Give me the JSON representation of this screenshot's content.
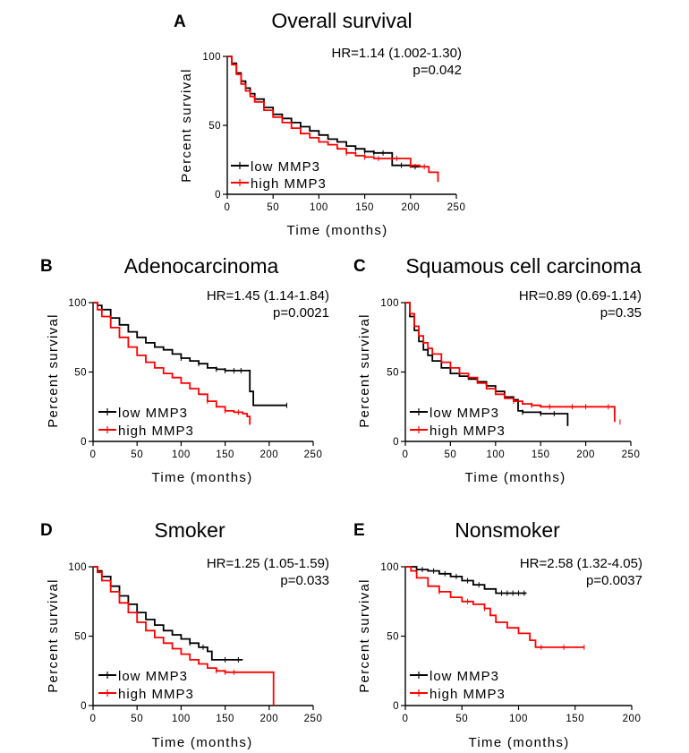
{
  "colors": {
    "low": "#000000",
    "high": "#ff0000"
  },
  "chart_data": [
    {
      "type": "line",
      "panel": "A",
      "title": "Overall survival",
      "hr_text": "HR=1.14 (1.002-1.30)",
      "p_text": "p=0.042",
      "xlabel": "Time (months)",
      "ylabel": "Percent survival",
      "xlim": [
        0,
        250
      ],
      "ylim": [
        0,
        100
      ],
      "xticks": [
        "0",
        "50",
        "100",
        "150",
        "200",
        "250"
      ],
      "yticks": [
        "0",
        "50",
        "100"
      ],
      "legend_position": "bottom-left",
      "series": [
        {
          "name": "low MMP3",
          "color": "#000000",
          "x": [
            0,
            5,
            10,
            15,
            20,
            25,
            30,
            40,
            50,
            60,
            70,
            80,
            90,
            100,
            110,
            120,
            130,
            140,
            150,
            160,
            170,
            180,
            190,
            200,
            210
          ],
          "y": [
            100,
            95,
            88,
            82,
            77,
            73,
            69,
            63,
            58,
            55,
            52,
            49,
            46,
            43,
            40,
            38,
            35,
            33,
            31,
            30,
            30,
            21,
            21,
            20,
            20
          ],
          "censor_x": [
            140,
            150,
            160,
            170,
            190,
            205
          ]
        },
        {
          "name": "high MMP3",
          "color": "#ff0000",
          "x": [
            0,
            5,
            10,
            15,
            20,
            25,
            30,
            40,
            50,
            60,
            70,
            80,
            90,
            100,
            110,
            120,
            130,
            140,
            150,
            160,
            180,
            200,
            210,
            220,
            225,
            230
          ],
          "y": [
            100,
            94,
            87,
            80,
            75,
            71,
            67,
            61,
            56,
            52,
            48,
            44,
            41,
            38,
            36,
            33,
            30,
            28,
            27,
            26,
            26,
            21,
            20,
            16,
            16,
            9
          ],
          "censor_x": [
            130,
            150,
            165,
            185,
            200,
            215
          ]
        }
      ]
    },
    {
      "type": "line",
      "panel": "B",
      "title": "Adenocarcinoma",
      "hr_text": "HR=1.45 (1.14-1.84)",
      "p_text": "p=0.0021",
      "xlabel": "Time (months)",
      "ylabel": "Percent survival",
      "xlim": [
        0,
        250
      ],
      "ylim": [
        0,
        100
      ],
      "xticks": [
        "0",
        "50",
        "100",
        "150",
        "200",
        "250"
      ],
      "yticks": [
        "0",
        "50",
        "100"
      ],
      "legend_position": "bottom-left",
      "series": [
        {
          "name": "low MMP3",
          "color": "#000000",
          "x": [
            0,
            5,
            10,
            20,
            30,
            40,
            50,
            60,
            70,
            80,
            90,
            100,
            110,
            120,
            130,
            140,
            150,
            160,
            170,
            175,
            178,
            182,
            200,
            220
          ],
          "y": [
            100,
            98,
            95,
            89,
            84,
            79,
            75,
            71,
            68,
            66,
            63,
            60,
            58,
            56,
            53,
            52,
            51,
            51,
            51,
            51,
            36,
            26,
            26,
            26
          ],
          "censor_x": [
            100,
            120,
            140,
            150,
            160,
            168,
            220
          ]
        },
        {
          "name": "high MMP3",
          "color": "#ff0000",
          "x": [
            0,
            5,
            10,
            20,
            30,
            40,
            50,
            60,
            70,
            80,
            90,
            100,
            110,
            120,
            130,
            140,
            150,
            160,
            170,
            175,
            178
          ],
          "y": [
            100,
            95,
            90,
            82,
            75,
            68,
            62,
            57,
            53,
            49,
            46,
            42,
            38,
            34,
            29,
            25,
            22,
            21,
            20,
            18,
            12
          ],
          "censor_x": [
            130,
            150,
            165
          ]
        }
      ]
    },
    {
      "type": "line",
      "panel": "C",
      "title": "Squamous cell carcinoma",
      "hr_text": "HR=0.89 (0.69-1.14)",
      "p_text": "p=0.35",
      "xlabel": "Time (months)",
      "ylabel": "Percent survival",
      "xlim": [
        0,
        250
      ],
      "ylim": [
        0,
        100
      ],
      "xticks": [
        "0",
        "50",
        "100",
        "150",
        "200",
        "250"
      ],
      "yticks": [
        "0",
        "50",
        "100"
      ],
      "legend_position": "bottom-left",
      "series": [
        {
          "name": "low MMP3",
          "color": "#000000",
          "x": [
            0,
            5,
            10,
            15,
            20,
            25,
            30,
            40,
            50,
            60,
            70,
            80,
            90,
            100,
            110,
            120,
            125,
            130,
            150,
            170,
            178,
            180
          ],
          "y": [
            100,
            90,
            80,
            72,
            66,
            62,
            58,
            53,
            49,
            47,
            45,
            43,
            40,
            36,
            32,
            30,
            22,
            21,
            20,
            20,
            20,
            11
          ],
          "censor_x": [
            130,
            150,
            165
          ]
        },
        {
          "name": "high MMP3",
          "color": "#ff0000",
          "x": [
            0,
            5,
            10,
            15,
            20,
            25,
            30,
            40,
            50,
            60,
            70,
            80,
            90,
            100,
            110,
            120,
            130,
            140,
            150,
            170,
            200,
            228,
            232
          ],
          "y": [
            100,
            92,
            83,
            76,
            71,
            67,
            63,
            57,
            53,
            49,
            46,
            42,
            38,
            34,
            31,
            29,
            27,
            26,
            25,
            25,
            25,
            25,
            14
          ],
          "censor_x": [
            120,
            140,
            160,
            185,
            200,
            225,
            238
          ]
        }
      ]
    },
    {
      "type": "line",
      "panel": "D",
      "title": "Smoker",
      "hr_text": "HR=1.25 (1.05-1.59)",
      "p_text": "p=0.033",
      "xlabel": "Time (months)",
      "ylabel": "Percent survival",
      "xlim": [
        0,
        250
      ],
      "ylim": [
        0,
        100
      ],
      "xticks": [
        "0",
        "50",
        "100",
        "150",
        "200",
        "250"
      ],
      "yticks": [
        "0",
        "50",
        "100"
      ],
      "legend_position": "bottom-left",
      "series": [
        {
          "name": "low MMP3",
          "color": "#000000",
          "x": [
            0,
            5,
            10,
            20,
            30,
            40,
            50,
            60,
            70,
            80,
            90,
            100,
            110,
            120,
            130,
            135,
            140,
            160,
            170
          ],
          "y": [
            100,
            97,
            93,
            86,
            79,
            73,
            67,
            62,
            58,
            54,
            51,
            48,
            45,
            42,
            39,
            33,
            33,
            33,
            33
          ],
          "censor_x": [
            110,
            125,
            150,
            165
          ]
        },
        {
          "name": "high MMP3",
          "color": "#ff0000",
          "x": [
            0,
            5,
            10,
            20,
            30,
            40,
            50,
            60,
            70,
            80,
            90,
            100,
            110,
            120,
            130,
            140,
            150,
            200,
            204,
            205
          ],
          "y": [
            100,
            96,
            90,
            82,
            74,
            67,
            60,
            54,
            49,
            45,
            41,
            37,
            33,
            30,
            27,
            25,
            24,
            24,
            24,
            0
          ],
          "censor_x": [
            140,
            150,
            160
          ]
        }
      ]
    },
    {
      "type": "line",
      "panel": "E",
      "title": "Nonsmoker",
      "hr_text": "HR=2.58 (1.32-4.05)",
      "p_text": "p=0.0037",
      "xlabel": "Time (months)",
      "ylabel": "Percent survival",
      "xlim": [
        0,
        200
      ],
      "ylim": [
        0,
        100
      ],
      "xticks": [
        "0",
        "50",
        "100",
        "150",
        "200"
      ],
      "yticks": [
        "0",
        "50",
        "100"
      ],
      "legend_position": "bottom-left",
      "series": [
        {
          "name": "low MMP3",
          "color": "#000000",
          "x": [
            0,
            10,
            20,
            30,
            40,
            50,
            60,
            70,
            80,
            90,
            100,
            107
          ],
          "y": [
            100,
            98,
            97,
            95,
            93,
            90,
            87,
            84,
            81,
            81,
            81,
            81
          ],
          "censor_x": [
            15,
            25,
            35,
            45,
            55,
            65,
            85,
            90,
            95,
            100,
            105
          ]
        },
        {
          "name": "high MMP3",
          "color": "#ff0000",
          "x": [
            0,
            5,
            10,
            20,
            30,
            40,
            50,
            60,
            70,
            75,
            80,
            90,
            100,
            110,
            115,
            120,
            130,
            140,
            150,
            158
          ],
          "y": [
            100,
            97,
            92,
            86,
            82,
            78,
            75,
            73,
            70,
            65,
            60,
            56,
            52,
            47,
            42,
            42,
            42,
            42,
            42,
            42
          ],
          "censor_x": [
            30,
            55,
            70,
            120,
            140,
            158
          ]
        }
      ]
    }
  ]
}
